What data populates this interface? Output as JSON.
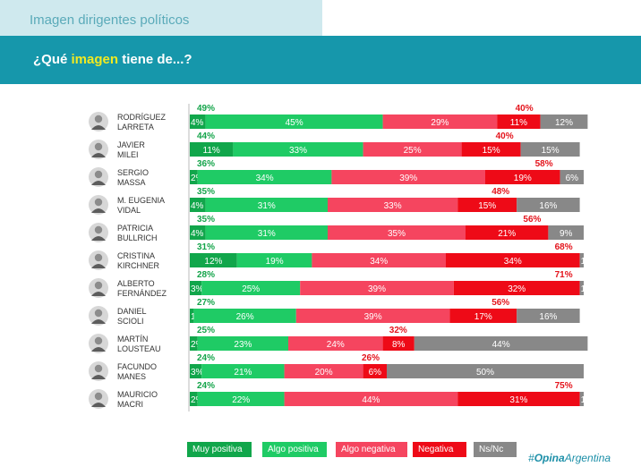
{
  "header": {
    "tab_title": "Imagen dirigentes políticos",
    "question_pre": "¿Qué ",
    "question_highlight": "imagen",
    "question_post": " tiene de...?"
  },
  "brand": {
    "hash": "#",
    "bold": "Opina",
    "rest": "Argentina"
  },
  "colors": {
    "muy_positiva": "#11a64b",
    "algo_positiva": "#1fcb65",
    "algo_negativa": "#f5455f",
    "negativa": "#ee0a17",
    "ns_nc": "#888888",
    "total_positive_text": "#14a44a",
    "total_negative_text": "#e4141c"
  },
  "chart_data": {
    "type": "bar",
    "orientation": "horizontal",
    "stacked": true,
    "percent_scale": 100,
    "categories": [
      "RODRÍGUEZ LARRETA",
      "JAVIER MILEI",
      "SERGIO MASSA",
      "M. EUGENIA VIDAL",
      "PATRICIA BULLRICH",
      "CRISTINA KIRCHNER",
      "ALBERTO FERNÁNDEZ",
      "DANIEL SCIOLI",
      "MARTÍN LOUSTEAU",
      "FACUNDO MANES",
      "MAURICIO MACRI"
    ],
    "category_lines": [
      [
        "RODRÍGUEZ",
        "LARRETA"
      ],
      [
        "JAVIER",
        "MILEI"
      ],
      [
        "SERGIO",
        "MASSA"
      ],
      [
        "M. EUGENIA",
        "VIDAL"
      ],
      [
        "PATRICIA",
        "BULLRICH"
      ],
      [
        "CRISTINA",
        "KIRCHNER"
      ],
      [
        "ALBERTO",
        "FERNÁNDEZ"
      ],
      [
        "DANIEL",
        "SCIOLI"
      ],
      [
        "MARTÍN",
        "LOUSTEAU"
      ],
      [
        "FACUNDO",
        "MANES"
      ],
      [
        "MAURICIO",
        "MACRI"
      ]
    ],
    "series": [
      {
        "name": "Muy positiva",
        "values": [
          4,
          11,
          2,
          4,
          4,
          12,
          3,
          1,
          2,
          3,
          2
        ]
      },
      {
        "name": "Algo positiva",
        "values": [
          45,
          33,
          34,
          31,
          31,
          19,
          25,
          26,
          23,
          21,
          22
        ]
      },
      {
        "name": "Algo negativa",
        "values": [
          29,
          25,
          39,
          33,
          35,
          34,
          39,
          39,
          24,
          20,
          44
        ]
      },
      {
        "name": "Negativa",
        "values": [
          11,
          15,
          19,
          15,
          21,
          34,
          32,
          17,
          8,
          6,
          31
        ]
      },
      {
        "name": "Ns/Nc",
        "values": [
          12,
          15,
          6,
          16,
          9,
          1,
          1,
          16,
          44,
          50,
          1
        ]
      }
    ],
    "total_positive": [
      49,
      44,
      36,
      35,
      35,
      31,
      28,
      27,
      25,
      24,
      24
    ],
    "total_negative": [
      40,
      40,
      58,
      48,
      56,
      68,
      71,
      56,
      32,
      26,
      75
    ],
    "value_suffix": "%",
    "legend": [
      "Muy positiva",
      "Algo positiva",
      "Algo negativa",
      "Negativa",
      "Ns/Nc"
    ],
    "legend_position": "bottom"
  }
}
